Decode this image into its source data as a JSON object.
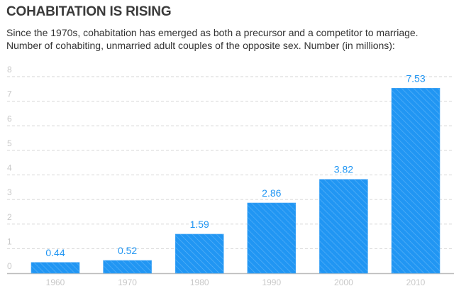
{
  "title": "COHABITATION IS RISING",
  "subtitle_lines": [
    "Since the 1970s, cohabitation has emerged as both a precursor and a competitor to marriage.",
    "Number of cohabiting, unmarried adult couples of the opposite sex. Number (in millions):"
  ],
  "chart_data": {
    "type": "bar",
    "title": "COHABITATION IS RISING",
    "categories": [
      "1960",
      "1970",
      "1980",
      "1990",
      "2000",
      "2010"
    ],
    "values": [
      0.44,
      0.52,
      1.59,
      2.86,
      3.82,
      7.53
    ],
    "data_labels": [
      "0.44",
      "0.52",
      "1.59",
      "2.86",
      "3.82",
      "7.53"
    ],
    "xlabel": "",
    "ylabel": "Number (in millions)",
    "ylim": [
      0,
      8
    ],
    "yticks": [
      "0",
      "1",
      "2",
      "3",
      "4",
      "5",
      "6",
      "7",
      "8"
    ],
    "grid": true,
    "bar_color": "#2196f3",
    "label_color": "#2196f3"
  }
}
